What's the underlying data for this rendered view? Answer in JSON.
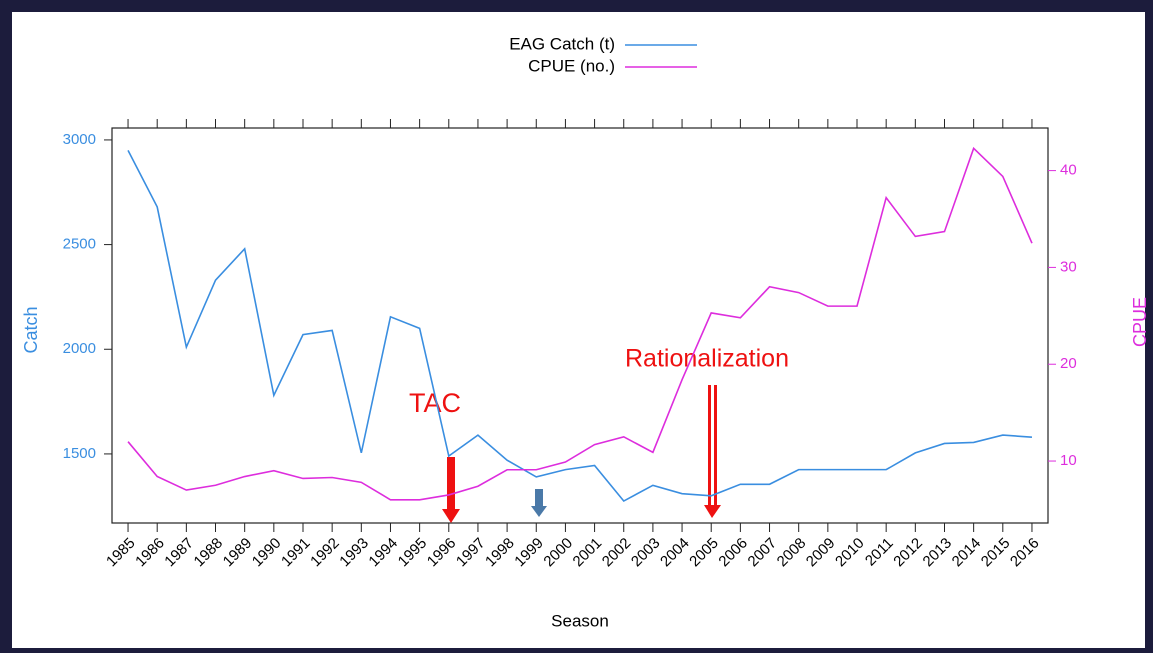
{
  "chart_data": {
    "type": "line",
    "x": [
      1985,
      1986,
      1987,
      1988,
      1989,
      1990,
      1991,
      1992,
      1993,
      1994,
      1995,
      1996,
      1997,
      1998,
      1999,
      2000,
      2001,
      2002,
      2003,
      2004,
      2005,
      2006,
      2007,
      2008,
      2009,
      2010,
      2011,
      2012,
      2013,
      2014,
      2015,
      2016
    ],
    "xlim": [
      1984.45,
      2016.55
    ],
    "xticks": [
      1985,
      1986,
      1987,
      1988,
      1989,
      1990,
      1991,
      1992,
      1993,
      1994,
      1995,
      1996,
      1997,
      1998,
      1999,
      2000,
      2001,
      2002,
      2003,
      2004,
      2005,
      2006,
      2007,
      2008,
      2009,
      2010,
      2011,
      2012,
      2013,
      2014,
      2015,
      2016
    ],
    "ylim": [
      1170,
      3057
    ],
    "yticks": [
      1500,
      2000,
      2500,
      3000
    ],
    "y2lim": [
      3.6,
      44.4
    ],
    "y2ticks": [
      10,
      20,
      30,
      40
    ],
    "x_label": "Season",
    "y_label": "Catch",
    "y2_label": "CPUE",
    "legend_position": "top",
    "series": [
      {
        "name": "EAG Catch (t)",
        "color": "#3a8ee0",
        "values": [
          2950,
          2680,
          2010,
          2330,
          2480,
          1780,
          2070,
          2090,
          1505,
          2155,
          2100,
          1490,
          1590,
          1470,
          1390,
          1425,
          1445,
          1275,
          1350,
          1310,
          1300,
          1355,
          1355,
          1425,
          1425,
          1425,
          1425,
          1505,
          1550,
          1555,
          1590,
          1580
        ]
      },
      {
        "name": "CPUE (no.)",
        "color": "#dd2ddd",
        "axis": "y2",
        "values": [
          12.0,
          8.4,
          7.0,
          7.5,
          8.4,
          9.0,
          8.2,
          8.3,
          7.8,
          6.0,
          6.0,
          6.5,
          7.4,
          9.1,
          9.1,
          9.9,
          11.7,
          12.5,
          10.9,
          18.4,
          25.3,
          24.8,
          28.0,
          27.4,
          26.0,
          26.0,
          37.2,
          33.2,
          33.7,
          42.3,
          39.4,
          32.5
        ]
      }
    ],
    "annotations": [
      "TAC",
      "Rationalization"
    ]
  }
}
